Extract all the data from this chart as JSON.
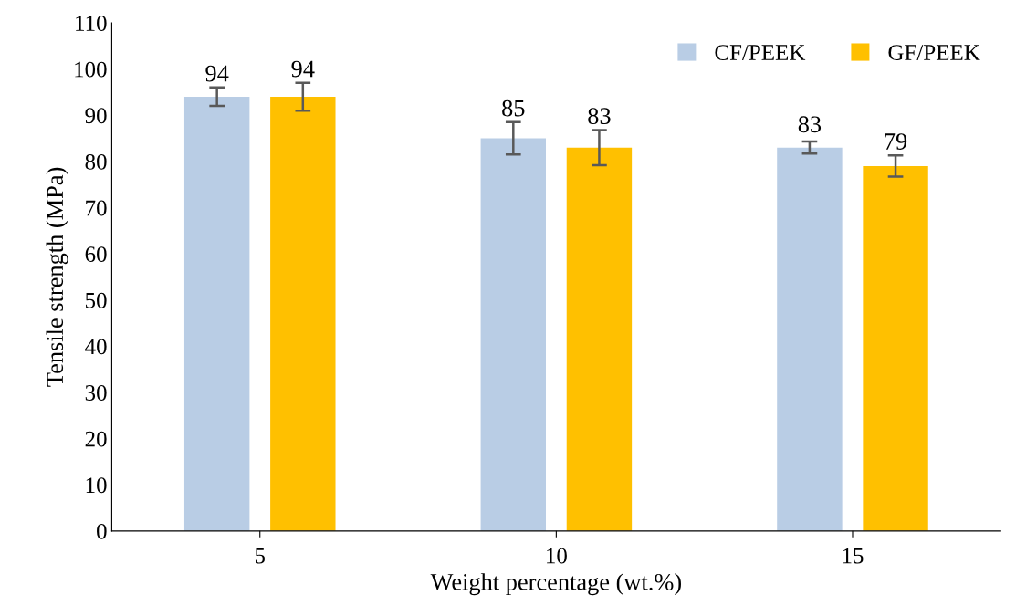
{
  "chart_data": {
    "type": "bar",
    "xlabel": "Weight percentage (wt.%)",
    "ylabel": "Tensile strength (MPa)",
    "categories": [
      "5",
      "10",
      "15"
    ],
    "series": [
      {
        "name": "CF/PEEK",
        "color": "#b9cde5",
        "values": [
          94,
          85,
          83
        ],
        "errors": [
          2,
          3.5,
          1.3
        ]
      },
      {
        "name": "GF/PEEK",
        "color": "#ffc000",
        "values": [
          94,
          83,
          79
        ],
        "errors": [
          3,
          3.8,
          2.3
        ]
      }
    ],
    "ylim": [
      0,
      110
    ],
    "yticks": [
      0,
      10,
      20,
      30,
      40,
      50,
      60,
      70,
      80,
      90,
      100,
      110
    ],
    "data_labels": true,
    "legend": "top right",
    "grid": false
  }
}
